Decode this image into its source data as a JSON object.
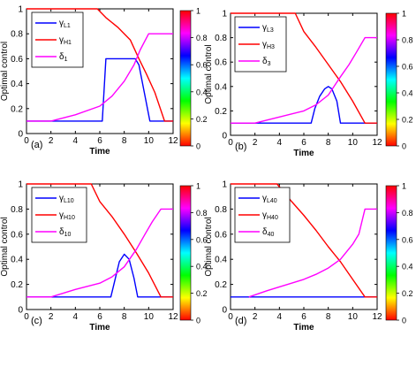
{
  "charts": [
    {
      "panel_label": "(a)",
      "ylabel": "Optimal control",
      "xlabel": "Time",
      "xticks": [
        "0",
        "2",
        "4",
        "6",
        "8",
        "10",
        "12"
      ],
      "yticks": [
        "0",
        "0.2",
        "0.4",
        "0.6",
        "0.8",
        "1"
      ],
      "legend": [
        {
          "sym": "γ",
          "sub": "L1",
          "color": "#0000ff"
        },
        {
          "sym": "γ",
          "sub": "H1",
          "color": "#ff0000"
        },
        {
          "sym": "δ",
          "sub": "1",
          "color": "#ff00ff"
        }
      ]
    },
    {
      "panel_label": "(b)",
      "ylabel": "Optimal control",
      "xlabel": "Time",
      "xticks": [
        "0",
        "2",
        "4",
        "6",
        "8",
        "10",
        "12"
      ],
      "yticks": [
        "0",
        "0.2",
        "0.4",
        "0.6",
        "0.8",
        "1"
      ],
      "legend": [
        {
          "sym": "γ",
          "sub": "L3",
          "color": "#0000ff"
        },
        {
          "sym": "γ",
          "sub": "H3",
          "color": "#ff0000"
        },
        {
          "sym": "δ",
          "sub": "3",
          "color": "#ff00ff"
        }
      ]
    },
    {
      "panel_label": "(c)",
      "ylabel": "Optimal control",
      "xlabel": "Time",
      "xticks": [
        "0",
        "2",
        "4",
        "6",
        "8",
        "10",
        "12"
      ],
      "yticks": [
        "0",
        "0.2",
        "0.4",
        "0.6",
        "0.8",
        "1"
      ],
      "legend": [
        {
          "sym": "γ",
          "sub": "L10",
          "color": "#0000ff"
        },
        {
          "sym": "γ",
          "sub": "H10",
          "color": "#ff0000"
        },
        {
          "sym": "δ",
          "sub": "10",
          "color": "#ff00ff"
        }
      ]
    },
    {
      "panel_label": "(d)",
      "ylabel": "Optimal control",
      "xlabel": "Time",
      "xticks": [
        "0",
        "2",
        "4",
        "6",
        "8",
        "10",
        "12"
      ],
      "yticks": [
        "0",
        "0.2",
        "0.4",
        "0.6",
        "0.8",
        "1"
      ],
      "legend": [
        {
          "sym": "γ",
          "sub": "L40",
          "color": "#0000ff"
        },
        {
          "sym": "γ",
          "sub": "H40",
          "color": "#ff0000"
        },
        {
          "sym": "δ",
          "sub": "40",
          "color": "#ff00ff"
        }
      ]
    }
  ],
  "colorbar": {
    "ticks": [
      "0",
      "0.2",
      "0.4",
      "0.6",
      "0.8",
      "1"
    ],
    "colormap": "hsv"
  },
  "chart_data": [
    {
      "type": "line",
      "xlim": [
        0,
        12
      ],
      "ylim": [
        0,
        1
      ],
      "series": [
        {
          "name": "γL1",
          "color": "#0000ff",
          "x": [
            0,
            6.2,
            6.5,
            8.9,
            9.2,
            10.1,
            12
          ],
          "y": [
            0.1,
            0.1,
            0.6,
            0.6,
            0.55,
            0.1,
            0.1
          ]
        },
        {
          "name": "γH1",
          "color": "#ff0000",
          "x": [
            0,
            5.8,
            6.5,
            7.5,
            8.5,
            9.2,
            9.8,
            10.5,
            11.3,
            12
          ],
          "y": [
            1,
            1,
            0.93,
            0.85,
            0.75,
            0.6,
            0.48,
            0.33,
            0.1,
            0.1
          ]
        },
        {
          "name": "δ1",
          "color": "#ff00ff",
          "x": [
            0,
            0.1,
            2,
            4,
            6,
            7,
            8,
            8.8,
            9.3,
            10,
            12
          ],
          "y": [
            0.1,
            0.1,
            0.1,
            0.15,
            0.22,
            0.3,
            0.42,
            0.55,
            0.67,
            0.8,
            0.8
          ]
        }
      ]
    },
    {
      "type": "line",
      "xlim": [
        0,
        12
      ],
      "ylim": [
        0,
        1
      ],
      "series": [
        {
          "name": "γL3",
          "color": "#0000ff",
          "x": [
            0,
            6.6,
            6.9,
            7.3,
            7.7,
            8.0,
            8.3,
            8.7,
            9.0,
            12
          ],
          "y": [
            0.1,
            0.1,
            0.22,
            0.32,
            0.38,
            0.4,
            0.38,
            0.28,
            0.1,
            0.1
          ]
        },
        {
          "name": "γH3",
          "color": "#ff0000",
          "x": [
            0,
            5.3,
            6,
            7,
            8,
            9,
            10,
            11,
            12
          ],
          "y": [
            1,
            1,
            0.85,
            0.72,
            0.58,
            0.44,
            0.28,
            0.1,
            0.1
          ]
        },
        {
          "name": "δ3",
          "color": "#ff00ff",
          "x": [
            0,
            2,
            4,
            6,
            7,
            8,
            9,
            9.7,
            10.3,
            11,
            12
          ],
          "y": [
            0.1,
            0.1,
            0.15,
            0.2,
            0.25,
            0.33,
            0.48,
            0.58,
            0.68,
            0.8,
            0.8
          ]
        }
      ]
    },
    {
      "type": "line",
      "xlim": [
        0,
        12
      ],
      "ylim": [
        0,
        1
      ],
      "series": [
        {
          "name": "γL10",
          "color": "#0000ff",
          "x": [
            0,
            6.9,
            7.2,
            7.6,
            8.0,
            8.4,
            8.8,
            9.1,
            12
          ],
          "y": [
            0.1,
            0.1,
            0.22,
            0.38,
            0.44,
            0.4,
            0.25,
            0.1,
            0.1
          ]
        },
        {
          "name": "γH10",
          "color": "#ff0000",
          "x": [
            0,
            5.3,
            6,
            7,
            8,
            9,
            10,
            11,
            12
          ],
          "y": [
            1,
            1,
            0.86,
            0.74,
            0.6,
            0.45,
            0.29,
            0.1,
            0.1
          ]
        },
        {
          "name": "δ10",
          "color": "#ff00ff",
          "x": [
            0,
            2,
            4,
            6,
            7,
            8,
            9,
            9.7,
            10.3,
            11,
            12
          ],
          "y": [
            0.1,
            0.1,
            0.16,
            0.21,
            0.26,
            0.34,
            0.48,
            0.6,
            0.7,
            0.8,
            0.8
          ]
        }
      ]
    },
    {
      "type": "line",
      "xlim": [
        0,
        12
      ],
      "ylim": [
        0,
        1
      ],
      "series": [
        {
          "name": "γL40",
          "color": "#0000ff",
          "x": [
            0,
            12
          ],
          "y": [
            0.1,
            0.1
          ]
        },
        {
          "name": "γH40",
          "color": "#ff0000",
          "x": [
            0,
            3.8,
            5,
            6,
            7,
            8,
            9,
            10,
            11,
            12
          ],
          "y": [
            1,
            1,
            0.86,
            0.75,
            0.63,
            0.5,
            0.38,
            0.24,
            0.1,
            0.1
          ]
        },
        {
          "name": "δ40",
          "color": "#ff00ff",
          "x": [
            1.5,
            3,
            4,
            5,
            6,
            7,
            8,
            9,
            10,
            10.5,
            11,
            12
          ],
          "y": [
            0.1,
            0.15,
            0.18,
            0.21,
            0.24,
            0.28,
            0.33,
            0.4,
            0.52,
            0.6,
            0.8,
            0.8
          ]
        }
      ]
    }
  ]
}
